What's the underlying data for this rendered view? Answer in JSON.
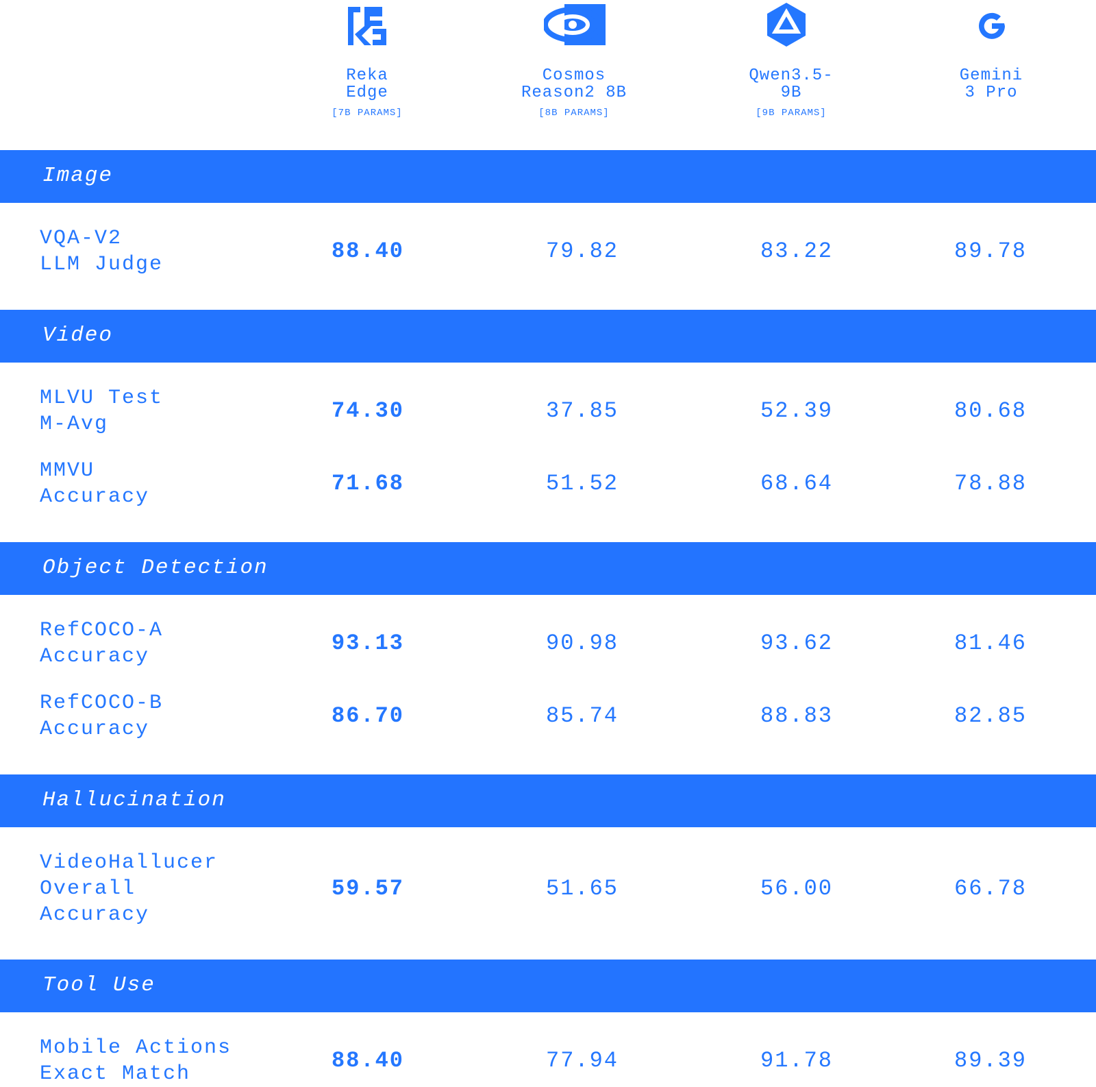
{
  "header": {
    "models": [
      {
        "name": [
          "Reka",
          "Edge"
        ],
        "params": "[7B PARAMS]"
      },
      {
        "name": [
          "Cosmos",
          "Reason2 8B"
        ],
        "params": "[8B PARAMS]"
      },
      {
        "name": [
          "Qwen3.5-",
          "9B"
        ],
        "params": "[9B PARAMS]"
      },
      {
        "name": [
          "Gemini",
          "3 Pro"
        ]
      }
    ]
  },
  "sections": [
    {
      "title": "Image",
      "rows": [
        {
          "label": [
            "VQA-V2",
            "LLM Judge"
          ],
          "values": [
            "88.40",
            "79.82",
            "83.22",
            "89.78"
          ]
        }
      ]
    },
    {
      "title": "Video",
      "rows": [
        {
          "label": [
            "MLVU Test",
            "M-Avg"
          ],
          "values": [
            "74.30",
            "37.85",
            "52.39",
            "80.68"
          ]
        },
        {
          "label": [
            "MMVU",
            "Accuracy"
          ],
          "values": [
            "71.68",
            "51.52",
            "68.64",
            "78.88"
          ]
        }
      ]
    },
    {
      "title": "Object Detection",
      "rows": [
        {
          "label": [
            "RefCOCO-A",
            "Accuracy"
          ],
          "values": [
            "93.13",
            "90.98",
            "93.62",
            "81.46"
          ]
        },
        {
          "label": [
            "RefCOCO-B",
            "Accuracy"
          ],
          "values": [
            "86.70",
            "85.74",
            "88.83",
            "82.85"
          ]
        }
      ]
    },
    {
      "title": "Hallucination",
      "rows": [
        {
          "label": [
            "VideoHallucer",
            "Overall",
            "Accuracy"
          ],
          "values": [
            "59.57",
            "51.65",
            "56.00",
            "66.78"
          ]
        }
      ]
    },
    {
      "title": "Tool Use",
      "rows": [
        {
          "label": [
            "Mobile Actions",
            "Exact Match"
          ],
          "values": [
            "88.40",
            "77.94",
            "91.78",
            "89.39"
          ]
        }
      ]
    }
  ]
}
